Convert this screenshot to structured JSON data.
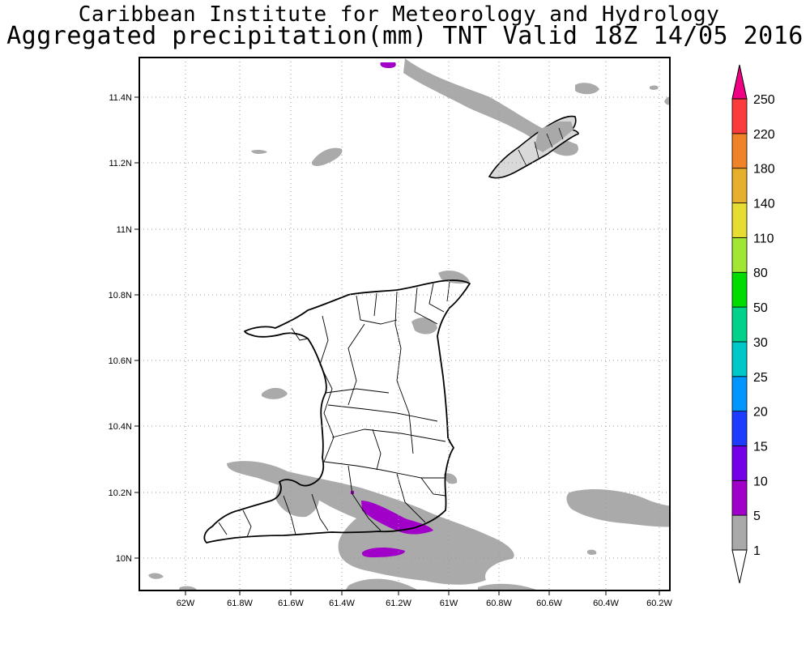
{
  "header": {
    "institute": "Caribbean Institute for Meteorology and Hydrology",
    "subtitle": "Aggregated precipitation(mm) TNT Valid 18Z 14/05 2016"
  },
  "map": {
    "lon_ticks": [
      "62W",
      "61.8W",
      "61.6W",
      "61.4W",
      "61.2W",
      "61W",
      "60.8W",
      "60.6W",
      "60.4W",
      "60.2W"
    ],
    "lat_ticks": [
      "11.4N",
      "11.2N",
      "11N",
      "10.8N",
      "10.6N",
      "10.4N",
      "10.2N",
      "10N"
    ],
    "grid": "dotted",
    "land_outline_color": "#000000"
  },
  "colorbar": {
    "labels": [
      "1",
      "5",
      "10",
      "15",
      "20",
      "25",
      "30",
      "50",
      "80",
      "110",
      "140",
      "180",
      "220",
      "250"
    ],
    "colors": [
      "#a9a9a9",
      "#a000c8",
      "#7300e6",
      "#1e3cff",
      "#0096ff",
      "#00c8c8",
      "#00d28c",
      "#00dc00",
      "#a0e632",
      "#e6dc32",
      "#e6af2d",
      "#f08228",
      "#fa3c3c",
      "#f00082"
    ],
    "below_color": "#ffffff"
  }
}
